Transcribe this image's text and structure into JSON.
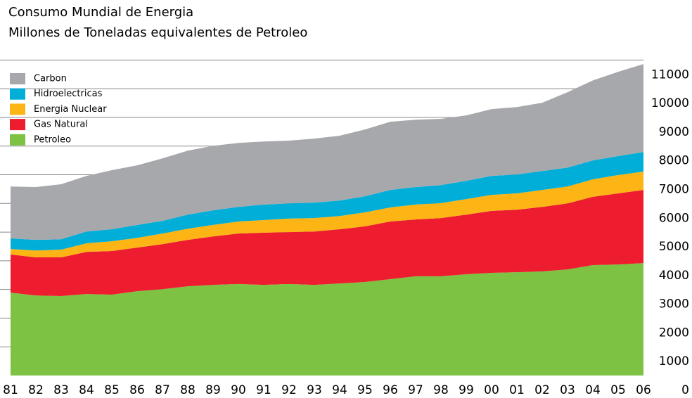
{
  "chart_data": {
    "type": "stacked_area",
    "title": "Consumo Mundial de Energia",
    "subtitle": "Millones de Toneladas equivalentes de Petroleo",
    "categories": [
      "81",
      "82",
      "83",
      "84",
      "85",
      "86",
      "87",
      "88",
      "89",
      "90",
      "91",
      "92",
      "93",
      "94",
      "95",
      "96",
      "97",
      "98",
      "99",
      "00",
      "01",
      "02",
      "03",
      "04",
      "05",
      "06"
    ],
    "series": [
      {
        "name": "Carbon",
        "color": "#a7a8ac",
        "values": [
          1810,
          1840,
          1920,
          1940,
          2060,
          2080,
          2180,
          2230,
          2250,
          2230,
          2200,
          2190,
          2230,
          2260,
          2330,
          2380,
          2350,
          2310,
          2280,
          2330,
          2350,
          2380,
          2630,
          2790,
          2940,
          3070
        ]
      },
      {
        "name": "Hidroelectricas",
        "color": "#00aed8",
        "values": [
          370,
          370,
          360,
          410,
          420,
          450,
          440,
          490,
          510,
          510,
          540,
          530,
          540,
          540,
          560,
          610,
          610,
          630,
          640,
          660,
          660,
          660,
          660,
          660,
          660,
          680
        ]
      },
      {
        "name": "Energia Nuclear",
        "color": "#fdb515",
        "values": [
          190,
          240,
          270,
          300,
          340,
          340,
          370,
          390,
          400,
          420,
          440,
          470,
          470,
          460,
          490,
          490,
          520,
          520,
          540,
          560,
          570,
          590,
          590,
          610,
          640,
          640
        ]
      },
      {
        "name": "Gas Natural",
        "color": "#ed1c2e",
        "values": [
          1330,
          1330,
          1350,
          1470,
          1520,
          1520,
          1570,
          1620,
          1690,
          1760,
          1820,
          1810,
          1860,
          1890,
          1940,
          2010,
          1980,
          2030,
          2080,
          2160,
          2180,
          2250,
          2300,
          2380,
          2480,
          2550
        ]
      },
      {
        "name": "Petroleo",
        "color": "#7dc242",
        "values": [
          2890,
          2790,
          2770,
          2840,
          2820,
          2940,
          3010,
          3110,
          3160,
          3190,
          3160,
          3190,
          3160,
          3210,
          3260,
          3360,
          3460,
          3460,
          3530,
          3580,
          3600,
          3630,
          3700,
          3850,
          3870,
          3920
        ]
      }
    ],
    "ylim": [
      0,
      11500
    ],
    "yticks": [
      0,
      1000,
      2000,
      3000,
      4000,
      5000,
      6000,
      7000,
      8000,
      9000,
      10000,
      11000
    ],
    "grid": true,
    "legend": "top-left"
  }
}
